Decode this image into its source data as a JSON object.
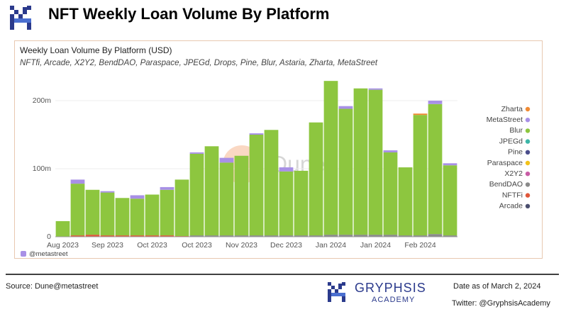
{
  "header": {
    "title": "NFT Weekly Loan Volume By Platform"
  },
  "chart_data": {
    "type": "stacked-bar",
    "title": "Weekly Loan Volume By Platform (USD)",
    "subtitle": "NFTfi, Arcade, X2Y2, BendDAO, Paraspace, JPEGd, Drops, Pine, Blur, Astaria, Zharta, MetaStreet",
    "source_tag": "@metastreet",
    "watermark": "Dune",
    "categories": [
      "Aug 2023",
      null,
      null,
      "Sep 2023",
      null,
      null,
      "Oct 2023",
      null,
      null,
      "Oct 2023",
      null,
      null,
      "Nov 2023",
      null,
      null,
      "Dec 2023",
      null,
      null,
      "Jan 2024",
      null,
      null,
      "Jan 2024",
      null,
      null,
      "Feb 2024",
      null,
      null
    ],
    "ylim": [
      0,
      230
    ],
    "yticks": [
      0,
      {
        "value": 100,
        "label": "100m"
      },
      {
        "value": 200,
        "label": "200m"
      }
    ],
    "grid": true,
    "legend": "right",
    "series": [
      {
        "name": "Zharta",
        "color": "#f08b34",
        "values": [
          0,
          0,
          0,
          0,
          0,
          0,
          0,
          0,
          0,
          0,
          0,
          0,
          0,
          0,
          0,
          0,
          0,
          0,
          0,
          0,
          0,
          0,
          0,
          0,
          2,
          0,
          0
        ]
      },
      {
        "name": "MetaStreet",
        "color": "#a890e6",
        "values": [
          0,
          6,
          0,
          2,
          0,
          5,
          0,
          4,
          0,
          2,
          0,
          7,
          0,
          2,
          0,
          6,
          0,
          0,
          0,
          4,
          0,
          2,
          3,
          0,
          0,
          5,
          3
        ]
      },
      {
        "name": "Blur",
        "color": "#8dc63f",
        "values": [
          23,
          76,
          66,
          63,
          55,
          54,
          60,
          67,
          83,
          120,
          131,
          107,
          117,
          148,
          155,
          94,
          95,
          166,
          226,
          185,
          215,
          213,
          121,
          100,
          177,
          191,
          103
        ]
      },
      {
        "name": "JPEGd",
        "color": "#3cb6a8",
        "values": [
          0,
          0,
          0,
          0,
          0,
          0,
          0,
          0,
          0,
          0,
          0,
          0,
          0,
          0,
          0,
          0,
          0,
          0,
          0,
          0,
          0,
          0,
          0,
          0,
          0,
          0,
          0
        ]
      },
      {
        "name": "Pine",
        "color": "#4b4e8c",
        "values": [
          0,
          0,
          0,
          0,
          0,
          0,
          0,
          0,
          0,
          0,
          0,
          0,
          0,
          0,
          0,
          0,
          0,
          0,
          0,
          0,
          0,
          0,
          0,
          0,
          0,
          0,
          0
        ]
      },
      {
        "name": "Paraspace",
        "color": "#f2c21b",
        "values": [
          0,
          0,
          0,
          0,
          0,
          0,
          0,
          0,
          0,
          0,
          0,
          0,
          0,
          0,
          0,
          0,
          0,
          0,
          0,
          0,
          0,
          0,
          0,
          0,
          0,
          0,
          0
        ]
      },
      {
        "name": "X2Y2",
        "color": "#c85ca5",
        "values": [
          0,
          0,
          0,
          0,
          0,
          0,
          0,
          0,
          0,
          0,
          0,
          0,
          0,
          0,
          0,
          0,
          0,
          0,
          0,
          0,
          0,
          0,
          0,
          0,
          0,
          0,
          0
        ]
      },
      {
        "name": "BendDAO",
        "color": "#8a8a8a",
        "values": [
          0,
          0,
          0,
          0,
          0,
          0,
          0,
          0,
          0,
          2,
          2,
          2,
          2,
          2,
          2,
          2,
          2,
          2,
          3,
          3,
          3,
          3,
          3,
          2,
          2,
          4,
          2
        ]
      },
      {
        "name": "NFTFi",
        "color": "#e0573a",
        "values": [
          0,
          2,
          3,
          2,
          2,
          2,
          2,
          2,
          1,
          0,
          0,
          0,
          0,
          0,
          0,
          0,
          0,
          0,
          0,
          0,
          0,
          0,
          0,
          0,
          0,
          0,
          0
        ]
      },
      {
        "name": "Arcade",
        "color": "#4a4e6e",
        "values": [
          0,
          0,
          0,
          0,
          0,
          0,
          0,
          0,
          0,
          0,
          0,
          0,
          0,
          0,
          0,
          0,
          0,
          0,
          0,
          0,
          0,
          0,
          0,
          0,
          0,
          0,
          0
        ]
      }
    ]
  },
  "footer": {
    "source": "Source: Dune@metastreet",
    "brand": "GRYPHSIS",
    "brand_sub": "ACADEMY",
    "date": "Date as of March 2, 2024",
    "twitter": "Twitter: @GryphsisAcademy"
  }
}
